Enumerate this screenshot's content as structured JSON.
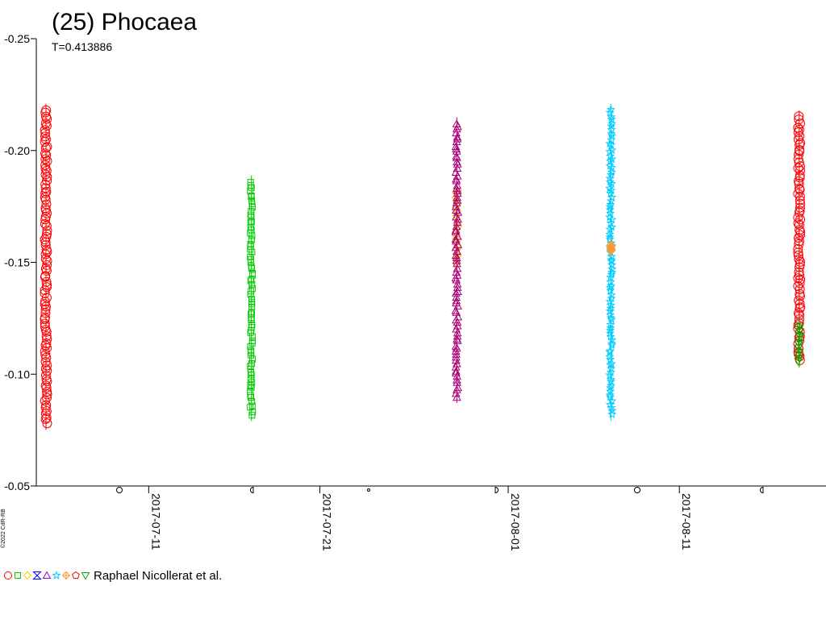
{
  "title": "(25) Phocaea",
  "subtitle": "T=0.413886",
  "credit": "Raphael Nicollerat et al.",
  "side_credit": "©2022 CdR-RB",
  "legend_symbols": [
    {
      "shape": "circle",
      "color": "#ff0000"
    },
    {
      "shape": "square",
      "color": "#00cc00"
    },
    {
      "shape": "diamond",
      "color": "#ffcc00"
    },
    {
      "shape": "hourglass",
      "color": "#0000ff"
    },
    {
      "shape": "triangle",
      "color": "#9900cc"
    },
    {
      "shape": "star",
      "color": "#00ccff"
    },
    {
      "shape": "cross-diamond",
      "color": "#ff9933"
    },
    {
      "shape": "pentagon",
      "color": "#ff0000"
    },
    {
      "shape": "triangle-down",
      "color": "#00aa00"
    }
  ],
  "chart_data": {
    "type": "scatter",
    "title": "(25) Phocaea",
    "subtitle": "T=0.413886",
    "y_inverted": true,
    "ylim": [
      -0.25,
      -0.05
    ],
    "yticks": [
      -0.25,
      -0.2,
      -0.15,
      -0.1,
      -0.05
    ],
    "ytick_labels": [
      "-0.25",
      "-0.20",
      "-0.15",
      "-0.10",
      "-0.05"
    ],
    "xlim": [
      "2017-07-05",
      "2017-08-19"
    ],
    "xticks": [
      "2017-07-11",
      "2017-07-21",
      "2017-08-01",
      "2017-08-11"
    ],
    "moon_phases": [
      "full",
      "last-quarter",
      "new",
      "first-quarter",
      "full",
      "last-quarter"
    ],
    "grid": false,
    "series": [
      {
        "marker": "circle",
        "color": "#ff0000",
        "x": "2017-07-05",
        "y_min": -0.218,
        "y_max": -0.078
      },
      {
        "marker": "square",
        "color": "#00cc00",
        "x": "2017-07-17",
        "y_min": -0.186,
        "y_max": -0.082
      },
      {
        "marker": "diamond",
        "color": "#ffaa00",
        "x": "2017-07-29",
        "y_min": -0.182,
        "y_max": -0.15
      },
      {
        "marker": "triangle",
        "color": "#aa0077",
        "x": "2017-07-29",
        "y_min": -0.212,
        "y_max": -0.09
      },
      {
        "marker": "star",
        "color": "#00ccff",
        "x": "2017-08-07",
        "y_min": -0.218,
        "y_max": -0.082
      },
      {
        "marker": "cross-diamond",
        "color": "#ff9933",
        "x": "2017-08-07",
        "y_min": -0.158,
        "y_max": -0.155
      },
      {
        "marker": "circle",
        "color": "#ff0000",
        "x": "2017-08-18",
        "y_min": -0.215,
        "y_max": -0.106
      },
      {
        "marker": "triangle-down",
        "color": "#00aa00",
        "x": "2017-08-18",
        "y_min": -0.122,
        "y_max": -0.106
      }
    ]
  }
}
